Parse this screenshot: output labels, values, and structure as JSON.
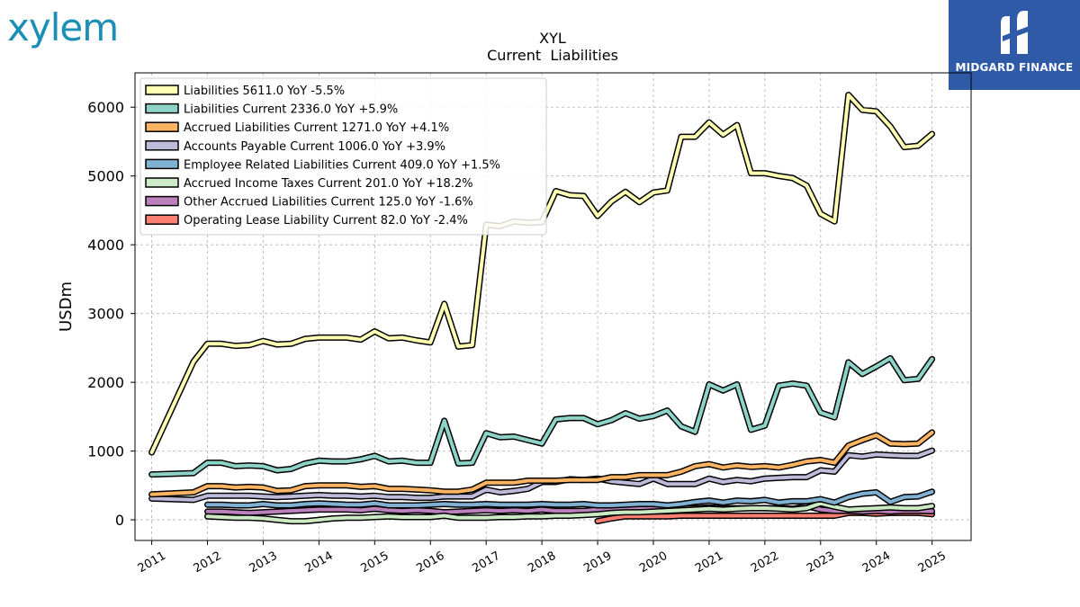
{
  "brand": {
    "logo_text": "xylem",
    "badge_text": "MIDGARD FINANCE"
  },
  "chart_data": {
    "type": "line",
    "title": "XYL",
    "subtitle": "Current  Liabilities",
    "ylabel": "USDm",
    "xlabel": "",
    "xlim": [
      2010.7,
      2025.7
    ],
    "ylim": [
      -300,
      6500
    ],
    "yticks": [
      0,
      1000,
      2000,
      3000,
      4000,
      5000,
      6000
    ],
    "xticks": [
      "2011",
      "2012",
      "2013",
      "2014",
      "2015",
      "2016",
      "2017",
      "2018",
      "2019",
      "2020",
      "2021",
      "2022",
      "2023",
      "2024",
      "2025"
    ],
    "grid": true,
    "legend_position": "top-left",
    "series": [
      {
        "name": "Liabilities",
        "legend": "Liabilities  5611.0 YoY -5.5%",
        "color": "#ffffb3",
        "x": [
          2011.0,
          2011.75,
          2012.0,
          2012.25,
          2012.5,
          2012.75,
          2013.0,
          2013.25,
          2013.5,
          2013.75,
          2014.0,
          2014.25,
          2014.5,
          2014.75,
          2015.0,
          2015.25,
          2015.5,
          2015.75,
          2016.0,
          2016.25,
          2016.5,
          2016.75,
          2017.0,
          2017.25,
          2017.5,
          2017.75,
          2018.0,
          2018.25,
          2018.5,
          2018.75,
          2019.0,
          2019.25,
          2019.5,
          2019.75,
          2020.0,
          2020.25,
          2020.5,
          2020.75,
          2021.0,
          2021.25,
          2021.5,
          2021.75,
          2022.0,
          2022.25,
          2022.5,
          2022.75,
          2023.0,
          2023.25,
          2023.5,
          2023.75,
          2024.0,
          2024.25,
          2024.5,
          2024.75,
          2025.0
        ],
        "y": [
          980,
          2300,
          2560,
          2560,
          2530,
          2540,
          2600,
          2550,
          2560,
          2630,
          2650,
          2650,
          2650,
          2620,
          2740,
          2640,
          2650,
          2610,
          2580,
          3140,
          2520,
          2540,
          4290,
          4270,
          4340,
          4320,
          4330,
          4780,
          4720,
          4710,
          4420,
          4630,
          4770,
          4620,
          4760,
          4790,
          5570,
          5570,
          5780,
          5600,
          5740,
          5040,
          5040,
          5000,
          4970,
          4860,
          4450,
          4340,
          6180,
          5960,
          5940,
          5720,
          5420,
          5440,
          5611
        ]
      },
      {
        "name": "Liabilities Current",
        "legend": "Liabilities Current  2336.0 YoY +5.9%",
        "color": "#8dd3c7",
        "x": [
          2011.0,
          2011.75,
          2012.0,
          2012.25,
          2012.5,
          2012.75,
          2013.0,
          2013.25,
          2013.5,
          2013.75,
          2014.0,
          2014.25,
          2014.5,
          2014.75,
          2015.0,
          2015.25,
          2015.5,
          2015.75,
          2016.0,
          2016.25,
          2016.5,
          2016.75,
          2017.0,
          2017.25,
          2017.5,
          2017.75,
          2018.0,
          2018.25,
          2018.5,
          2018.75,
          2019.0,
          2019.25,
          2019.5,
          2019.75,
          2020.0,
          2020.25,
          2020.5,
          2020.75,
          2021.0,
          2021.25,
          2021.5,
          2021.75,
          2022.0,
          2022.25,
          2022.5,
          2022.75,
          2023.0,
          2023.25,
          2023.5,
          2023.75,
          2024.0,
          2024.25,
          2024.5,
          2024.75,
          2025.0
        ],
        "y": [
          660,
          680,
          830,
          830,
          780,
          790,
          780,
          720,
          740,
          820,
          860,
          850,
          850,
          880,
          930,
          850,
          860,
          830,
          830,
          1440,
          820,
          830,
          1260,
          1200,
          1210,
          1160,
          1110,
          1460,
          1480,
          1480,
          1390,
          1450,
          1550,
          1470,
          1510,
          1590,
          1360,
          1280,
          1970,
          1880,
          1970,
          1310,
          1370,
          1950,
          1980,
          1950,
          1560,
          1490,
          2290,
          2120,
          2230,
          2350,
          2030,
          2050,
          2336
        ]
      },
      {
        "name": "Accrued Liabilities Current",
        "legend": "Accrued Liabilities Current  1271.0 YoY +4.1%",
        "color": "#fdb462",
        "x": [
          2011.0,
          2011.75,
          2012.0,
          2012.25,
          2012.5,
          2012.75,
          2013.0,
          2013.25,
          2013.5,
          2013.75,
          2014.0,
          2014.25,
          2014.5,
          2014.75,
          2015.0,
          2015.25,
          2015.5,
          2015.75,
          2016.0,
          2016.25,
          2016.5,
          2016.75,
          2017.0,
          2017.25,
          2017.5,
          2017.75,
          2018.0,
          2018.25,
          2018.5,
          2018.75,
          2019.0,
          2019.25,
          2019.5,
          2019.75,
          2020.0,
          2020.25,
          2020.5,
          2020.75,
          2021.0,
          2021.25,
          2021.5,
          2021.75,
          2022.0,
          2022.25,
          2022.5,
          2022.75,
          2023.0,
          2023.25,
          2023.5,
          2023.75,
          2024.0,
          2024.25,
          2024.5,
          2024.75,
          2025.0
        ],
        "y": [
          370,
          400,
          490,
          490,
          470,
          480,
          470,
          420,
          430,
          490,
          500,
          500,
          500,
          480,
          490,
          450,
          450,
          440,
          430,
          410,
          410,
          440,
          540,
          540,
          540,
          570,
          570,
          570,
          580,
          580,
          580,
          620,
          620,
          650,
          650,
          650,
          700,
          780,
          810,
          760,
          790,
          770,
          780,
          760,
          800,
          850,
          870,
          830,
          1080,
          1160,
          1230,
          1110,
          1100,
          1110,
          1271
        ]
      },
      {
        "name": "Accounts Payable Current",
        "legend": "Accounts Payable Current  1006.0 YoY +3.9%",
        "color": "#bebada",
        "x": [
          2011.0,
          2011.75,
          2012.0,
          2012.25,
          2012.5,
          2012.75,
          2013.0,
          2013.25,
          2013.5,
          2013.75,
          2014.0,
          2014.25,
          2014.5,
          2014.75,
          2015.0,
          2015.25,
          2015.5,
          2015.75,
          2016.0,
          2016.25,
          2016.5,
          2016.75,
          2017.0,
          2017.25,
          2017.5,
          2017.75,
          2018.0,
          2018.25,
          2018.5,
          2018.75,
          2019.0,
          2019.25,
          2019.5,
          2019.75,
          2020.0,
          2020.25,
          2020.5,
          2020.75,
          2021.0,
          2021.25,
          2021.5,
          2021.75,
          2022.0,
          2022.25,
          2022.5,
          2022.75,
          2023.0,
          2023.25,
          2023.5,
          2023.75,
          2024.0,
          2024.25,
          2024.5,
          2024.75,
          2025.0
        ],
        "y": [
          310,
          290,
          350,
          350,
          350,
          350,
          340,
          330,
          340,
          350,
          360,
          350,
          350,
          340,
          350,
          330,
          330,
          320,
          320,
          340,
          340,
          340,
          440,
          400,
          420,
          450,
          550,
          550,
          590,
          580,
          600,
          560,
          540,
          520,
          600,
          520,
          520,
          520,
          600,
          550,
          580,
          560,
          600,
          610,
          620,
          620,
          720,
          700,
          940,
          920,
          950,
          940,
          930,
          930,
          1006
        ]
      },
      {
        "name": "Employee Related Liabilities Current",
        "legend": "Employee Related Liabilities Current  409.0 YoY +1.5%",
        "color": "#80b1d3",
        "x": [
          2012.0,
          2012.25,
          2012.5,
          2012.75,
          2013.0,
          2013.25,
          2013.5,
          2013.75,
          2014.0,
          2014.25,
          2014.5,
          2014.75,
          2015.0,
          2015.25,
          2015.5,
          2015.75,
          2016.0,
          2016.25,
          2016.5,
          2016.75,
          2017.0,
          2017.25,
          2017.5,
          2017.75,
          2018.0,
          2018.25,
          2018.5,
          2018.75,
          2019.0,
          2019.25,
          2019.5,
          2019.75,
          2020.0,
          2020.25,
          2020.5,
          2020.75,
          2021.0,
          2021.25,
          2021.5,
          2021.75,
          2022.0,
          2022.25,
          2022.5,
          2022.75,
          2023.0,
          2023.25,
          2023.5,
          2023.75,
          2024.0,
          2024.25,
          2024.5,
          2024.75,
          2025.0
        ],
        "y": [
          220,
          220,
          210,
          210,
          230,
          210,
          210,
          230,
          240,
          230,
          220,
          220,
          240,
          210,
          210,
          210,
          220,
          230,
          220,
          220,
          230,
          220,
          220,
          220,
          230,
          220,
          220,
          230,
          210,
          210,
          220,
          230,
          230,
          210,
          230,
          260,
          280,
          250,
          280,
          270,
          290,
          250,
          270,
          270,
          300,
          250,
          330,
          380,
          400,
          260,
          330,
          340,
          409
        ]
      },
      {
        "name": "Accrued Income Taxes Current",
        "legend": "Accrued Income Taxes Current  201.0 YoY +18.2%",
        "color": "#ccebc5",
        "x": [
          2012.0,
          2012.25,
          2012.5,
          2012.75,
          2013.0,
          2013.25,
          2013.5,
          2013.75,
          2014.0,
          2014.25,
          2014.5,
          2014.75,
          2015.0,
          2015.25,
          2015.5,
          2015.75,
          2016.0,
          2016.25,
          2016.5,
          2016.75,
          2017.0,
          2017.25,
          2017.5,
          2017.75,
          2018.0,
          2018.25,
          2018.5,
          2018.75,
          2019.0,
          2019.25,
          2019.5,
          2019.75,
          2020.0,
          2020.25,
          2020.5,
          2020.75,
          2021.0,
          2021.25,
          2021.5,
          2021.75,
          2022.0,
          2022.25,
          2022.5,
          2022.75,
          2023.0,
          2023.25,
          2023.5,
          2023.75,
          2024.0,
          2024.25,
          2024.5,
          2024.75,
          2025.0
        ],
        "y": [
          50,
          40,
          30,
          30,
          20,
          0,
          -20,
          -20,
          0,
          20,
          30,
          30,
          40,
          50,
          40,
          40,
          40,
          60,
          30,
          30,
          30,
          40,
          40,
          50,
          50,
          60,
          60,
          70,
          80,
          100,
          110,
          110,
          120,
          130,
          140,
          150,
          160,
          150,
          160,
          170,
          170,
          160,
          150,
          170,
          240,
          190,
          150,
          160,
          170,
          180,
          170,
          170,
          201
        ]
      },
      {
        "name": "Other Accrued Liabilities Current",
        "legend": "Other Accrued Liabilities Current  125.0 YoY -1.6%",
        "color": "#bc80bd",
        "x": [
          2012.0,
          2012.25,
          2012.5,
          2012.75,
          2013.0,
          2013.25,
          2013.5,
          2013.75,
          2014.0,
          2014.25,
          2014.5,
          2014.75,
          2015.0,
          2015.25,
          2015.5,
          2015.75,
          2016.0,
          2016.25,
          2016.5,
          2016.75,
          2017.0,
          2017.25,
          2017.5,
          2017.75,
          2018.0,
          2018.25,
          2018.5,
          2018.75,
          2019.0,
          2019.25,
          2019.5,
          2019.75,
          2020.0,
          2020.25,
          2020.5,
          2020.75,
          2021.0,
          2021.25,
          2021.5,
          2021.75,
          2022.0,
          2022.25,
          2022.5,
          2022.75,
          2023.0,
          2023.25,
          2023.5,
          2023.75,
          2024.0,
          2024.25,
          2024.5,
          2024.75,
          2025.0
        ],
        "y": [
          120,
          120,
          110,
          100,
          110,
          120,
          130,
          140,
          150,
          150,
          150,
          140,
          160,
          140,
          130,
          140,
          130,
          110,
          120,
          130,
          140,
          130,
          140,
          130,
          150,
          130,
          130,
          130,
          150,
          150,
          160,
          170,
          160,
          160,
          170,
          170,
          180,
          170,
          170,
          170,
          170,
          170,
          160,
          200,
          150,
          130,
          130,
          120,
          130,
          120,
          130,
          130,
          125
        ]
      },
      {
        "name": "Operating Lease Liability Current",
        "legend": "Operating Lease Liability Current  82.0 YoY -2.4%",
        "color": "#fb8072",
        "x": [
          2019.0,
          2019.25,
          2019.5,
          2019.75,
          2020.0,
          2020.25,
          2020.5,
          2020.75,
          2021.0,
          2021.25,
          2021.5,
          2021.75,
          2022.0,
          2022.25,
          2022.5,
          2022.75,
          2023.0,
          2023.25,
          2023.5,
          2023.75,
          2024.0,
          2024.25,
          2024.5,
          2024.75,
          2025.0
        ],
        "y": [
          -20,
          20,
          50,
          50,
          50,
          50,
          60,
          60,
          60,
          60,
          60,
          60,
          60,
          60,
          60,
          60,
          60,
          60,
          100,
          100,
          90,
          100,
          100,
          100,
          82
        ]
      }
    ]
  }
}
